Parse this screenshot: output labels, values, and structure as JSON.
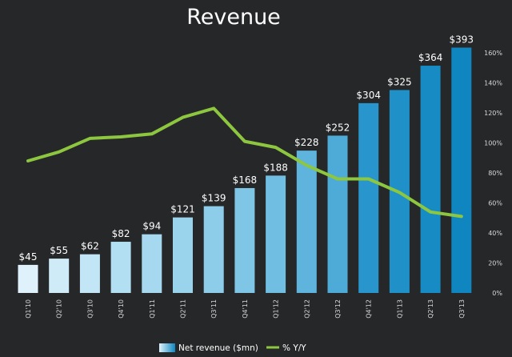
{
  "chart_data": {
    "type": "bar",
    "title": "Revenue",
    "categories": [
      "Q1'10",
      "Q2'10",
      "Q3'10",
      "Q4'10",
      "Q1'11",
      "Q2'11",
      "Q3'11",
      "Q4'11",
      "Q1'12",
      "Q2'12",
      "Q3'12",
      "Q4'12",
      "Q1'13",
      "Q2'13",
      "Q3'13"
    ],
    "series": [
      {
        "name": "Net revenue ($mn)",
        "type": "bar",
        "axis": "left",
        "values": [
          45,
          55,
          62,
          82,
          94,
          121,
          139,
          168,
          188,
          228,
          252,
          304,
          325,
          364,
          393
        ],
        "labels": [
          "$45",
          "$55",
          "$62",
          "$82",
          "$94",
          "$121",
          "$139",
          "$168",
          "$188",
          "$228",
          "$252",
          "$304",
          "$325",
          "$364",
          "$393"
        ],
        "colors": [
          "#dff2fb",
          "#cfebf8",
          "#c2e6f6",
          "#b2dff2",
          "#a6d9ef",
          "#9ad3ec",
          "#8dcdea",
          "#7fc5e6",
          "#70bee2",
          "#5eb4dd",
          "#4eabd8",
          "#2896cc",
          "#1f91c8",
          "#178cc4",
          "#0f86bf"
        ]
      },
      {
        "name": "% Y/Y",
        "type": "line",
        "axis": "right",
        "values": [
          88,
          94,
          103,
          104,
          106,
          117,
          123,
          101,
          97,
          85,
          76,
          76,
          67,
          54,
          51
        ],
        "color": "#8dc63f"
      }
    ],
    "ylim": [
      0,
      400
    ],
    "y2lim": [
      0,
      160
    ],
    "y2ticks": [
      "0%",
      "20%",
      "40%",
      "60%",
      "80%",
      "100%",
      "120%",
      "140%",
      "160%"
    ],
    "grid": false,
    "legend": "bottom-center"
  }
}
